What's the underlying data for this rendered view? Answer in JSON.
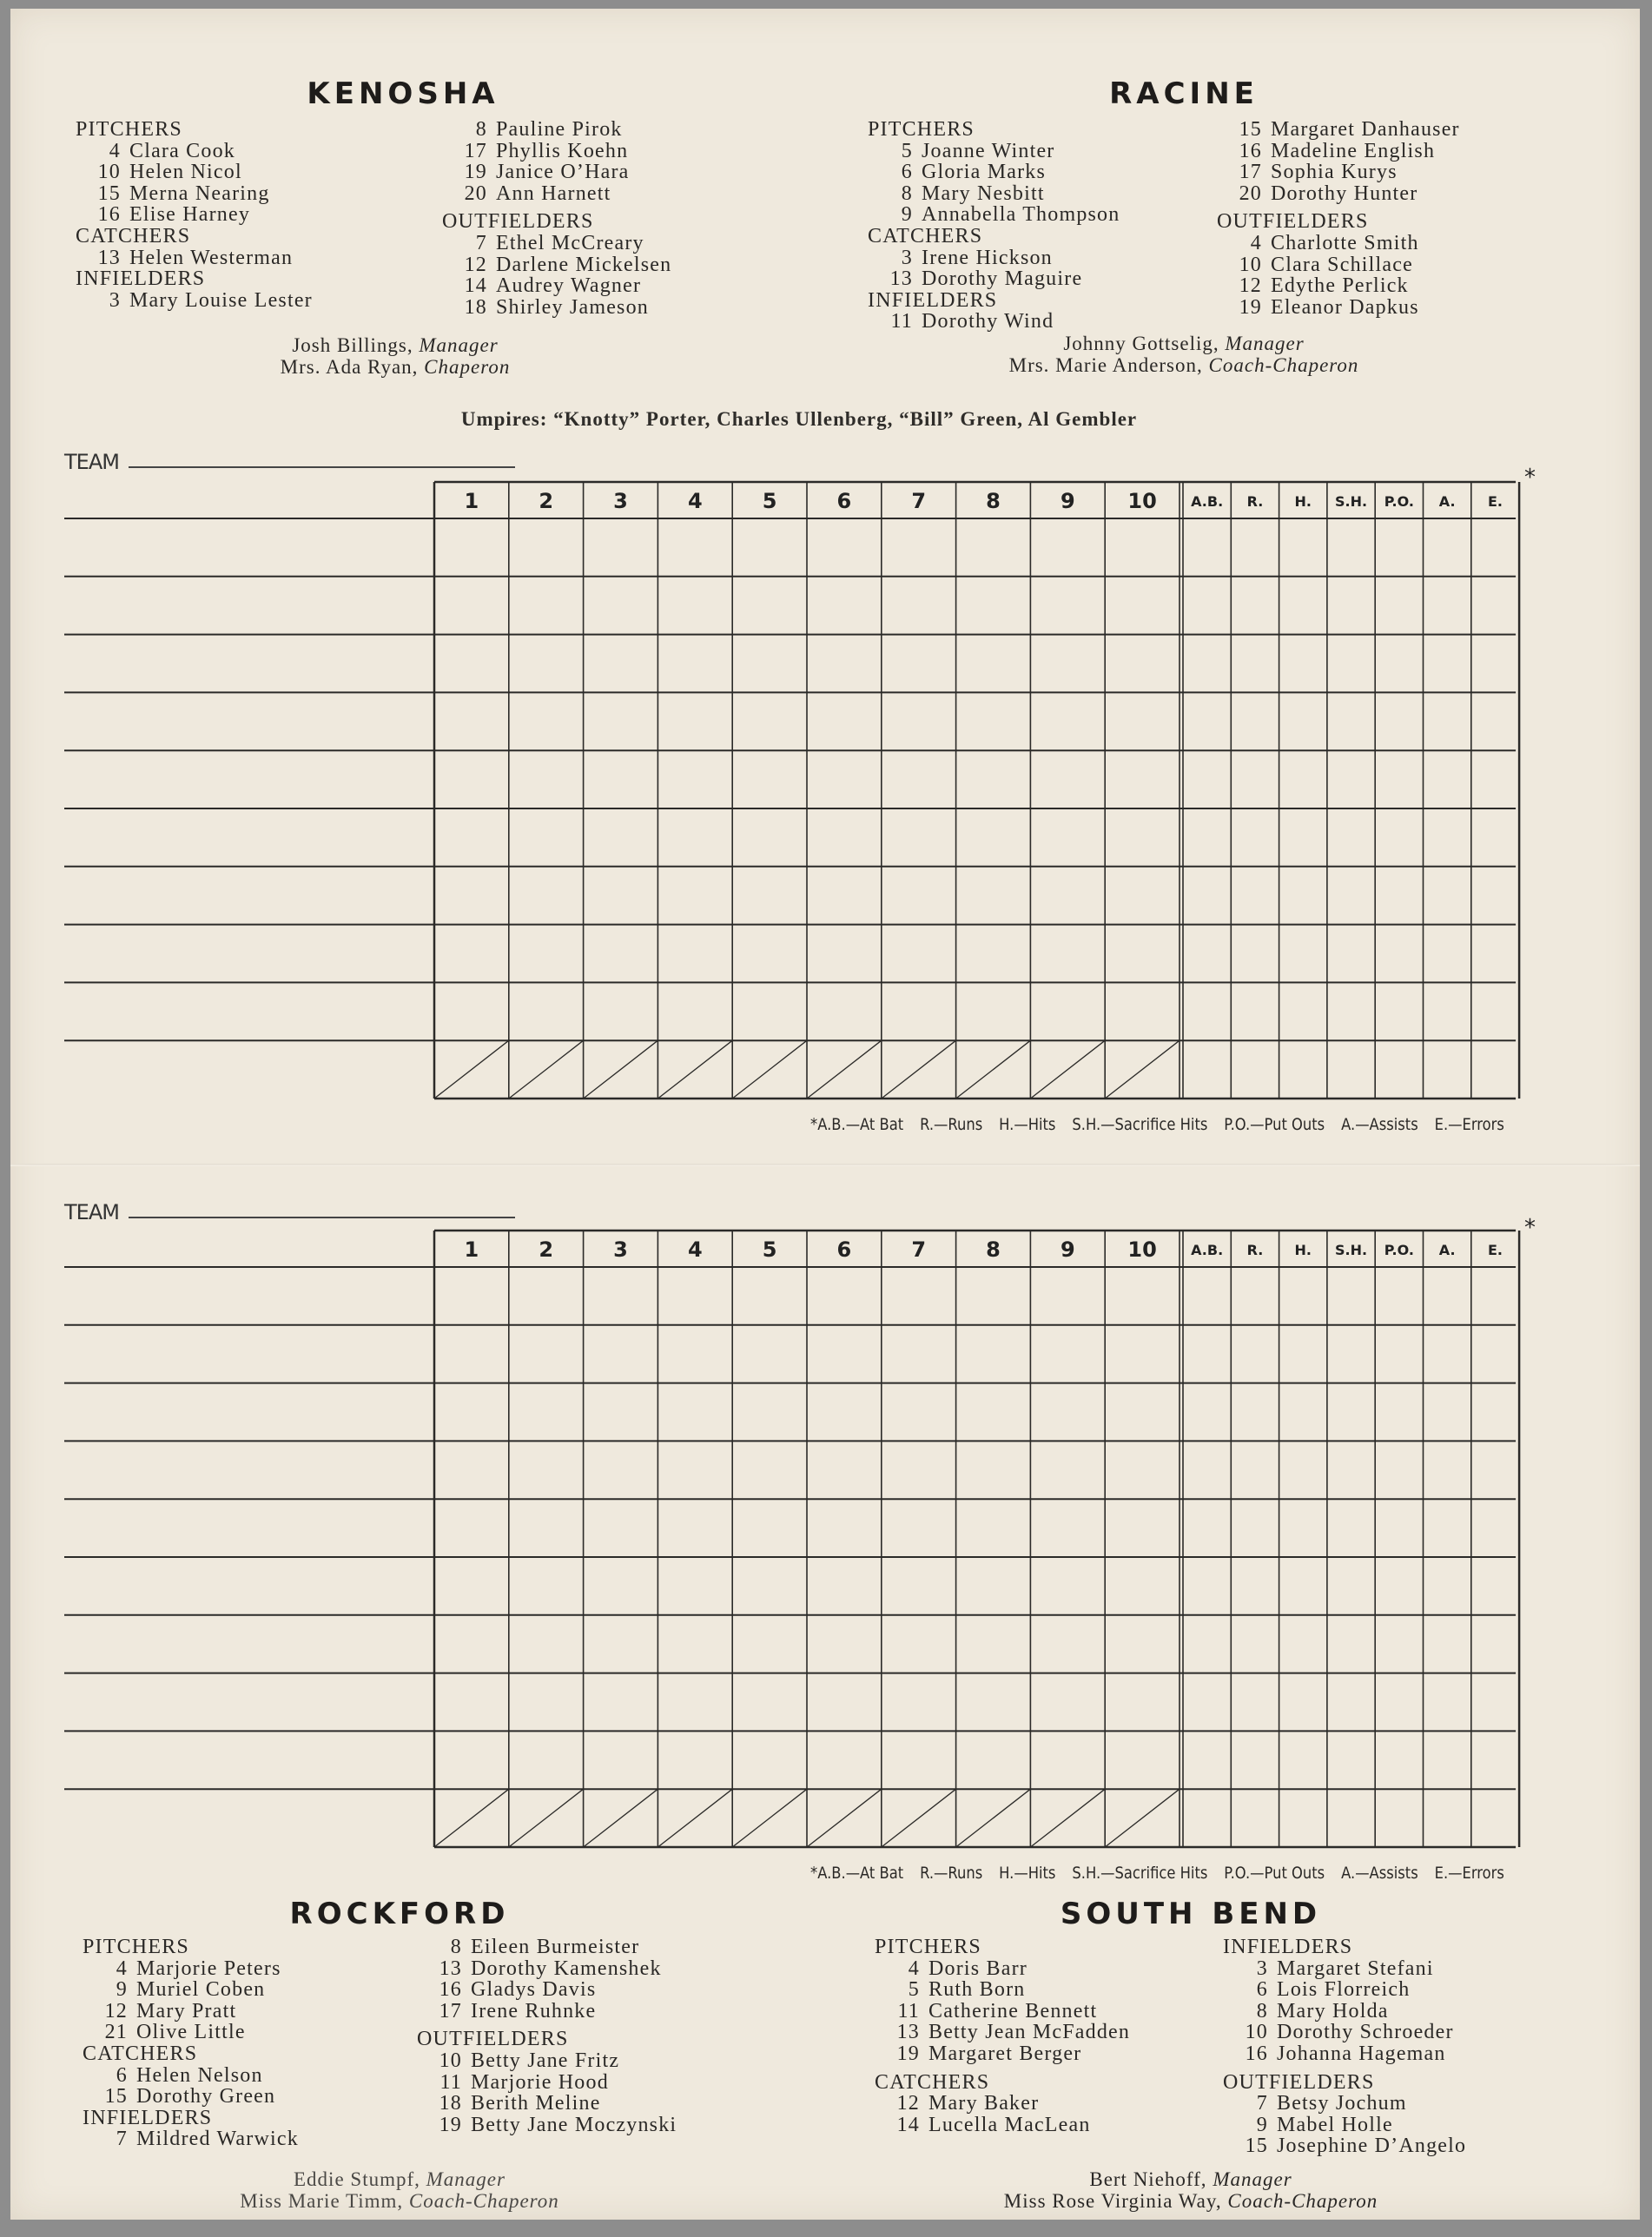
{
  "colors": {
    "paper": "#efe9dd",
    "ink": "#2a2826",
    "frame": "#8d8d8d"
  },
  "teams": {
    "kenosha": {
      "name": "KENOSHA",
      "columns": [
        [
          {
            "heading": "PITCHERS",
            "players": [
              {
                "num": "4",
                "name": "Clara Cook"
              },
              {
                "num": "10",
                "name": "Helen Nicol"
              },
              {
                "num": "15",
                "name": "Merna Nearing"
              },
              {
                "num": "16",
                "name": "Elise Harney"
              }
            ]
          },
          {
            "heading": "CATCHERS",
            "players": [
              {
                "num": "13",
                "name": "Helen Westerman"
              }
            ]
          },
          {
            "heading": "INFIELDERS",
            "players": [
              {
                "num": "3",
                "name": "Mary Louise Lester"
              }
            ]
          }
        ],
        [
          {
            "heading": null,
            "players": [
              {
                "num": "8",
                "name": "Pauline Pirok"
              },
              {
                "num": "17",
                "name": "Phyllis Koehn"
              },
              {
                "num": "19",
                "name": "Janice O’Hara"
              },
              {
                "num": "20",
                "name": "Ann Harnett"
              }
            ]
          },
          {
            "heading": "OUTFIELDERS",
            "gap": true,
            "players": [
              {
                "num": "7",
                "name": "Ethel McCreary"
              },
              {
                "num": "12",
                "name": "Darlene Mickelsen"
              },
              {
                "num": "14",
                "name": "Audrey Wagner"
              },
              {
                "num": "18",
                "name": "Shirley Jameson"
              }
            ]
          }
        ]
      ],
      "manager": {
        "name": "Josh Billings,",
        "role": "Manager"
      },
      "chaperon": {
        "name": "Mrs. Ada Ryan,",
        "role": "Chaperon"
      }
    },
    "racine": {
      "name": "RACINE",
      "columns": [
        [
          {
            "heading": "PITCHERS",
            "players": [
              {
                "num": "5",
                "name": "Joanne Winter"
              },
              {
                "num": "6",
                "name": "Gloria Marks"
              },
              {
                "num": "8",
                "name": "Mary Nesbitt"
              },
              {
                "num": "9",
                "name": "Annabella Thompson"
              }
            ]
          },
          {
            "heading": "CATCHERS",
            "players": [
              {
                "num": "3",
                "name": "Irene Hickson"
              },
              {
                "num": "13",
                "name": "Dorothy Maguire"
              }
            ]
          },
          {
            "heading": "INFIELDERS",
            "players": [
              {
                "num": "11",
                "name": "Dorothy Wind"
              }
            ]
          }
        ],
        [
          {
            "heading": null,
            "players": [
              {
                "num": "15",
                "name": "Margaret Danhauser"
              },
              {
                "num": "16",
                "name": "Madeline English"
              },
              {
                "num": "17",
                "name": "Sophia Kurys"
              },
              {
                "num": "20",
                "name": "Dorothy Hunter"
              }
            ]
          },
          {
            "heading": "OUTFIELDERS",
            "gap": true,
            "players": [
              {
                "num": "4",
                "name": "Charlotte Smith"
              },
              {
                "num": "10",
                "name": "Clara Schillace"
              },
              {
                "num": "12",
                "name": "Edythe Perlick"
              },
              {
                "num": "19",
                "name": "Eleanor Dapkus"
              }
            ]
          }
        ]
      ],
      "manager": {
        "name": "Johnny Gottselig,",
        "role": "Manager"
      },
      "chaperon": {
        "name": "Mrs. Marie Anderson,",
        "role": "Coach-Chaperon"
      }
    },
    "rockford": {
      "name": "ROCKFORD",
      "columns": [
        [
          {
            "heading": "PITCHERS",
            "players": [
              {
                "num": "4",
                "name": "Marjorie Peters"
              },
              {
                "num": "9",
                "name": "Muriel Coben"
              },
              {
                "num": "12",
                "name": "Mary Pratt"
              },
              {
                "num": "21",
                "name": "Olive Little"
              }
            ]
          },
          {
            "heading": "CATCHERS",
            "players": [
              {
                "num": "6",
                "name": "Helen Nelson"
              },
              {
                "num": "15",
                "name": "Dorothy Green"
              }
            ]
          },
          {
            "heading": "INFIELDERS",
            "players": [
              {
                "num": "7",
                "name": "Mildred Warwick"
              }
            ]
          }
        ],
        [
          {
            "heading": null,
            "players": [
              {
                "num": "8",
                "name": "Eileen Burmeister"
              },
              {
                "num": "13",
                "name": "Dorothy Kamenshek"
              },
              {
                "num": "16",
                "name": "Gladys Davis"
              },
              {
                "num": "17",
                "name": "Irene Ruhnke"
              }
            ]
          },
          {
            "heading": "OUTFIELDERS",
            "gap": true,
            "players": [
              {
                "num": "10",
                "name": "Betty Jane Fritz"
              },
              {
                "num": "11",
                "name": "Marjorie Hood"
              },
              {
                "num": "18",
                "name": "Berith Meline"
              },
              {
                "num": "19",
                "name": "Betty Jane Moczynski"
              }
            ]
          }
        ]
      ],
      "manager": {
        "name": "Eddie Stumpf,",
        "role": "Manager"
      },
      "chaperon": {
        "name": "Miss Marie Timm,",
        "role": "Coach-Chaperon"
      }
    },
    "south_bend": {
      "name": "SOUTH BEND",
      "columns": [
        [
          {
            "heading": "PITCHERS",
            "players": [
              {
                "num": "4",
                "name": "Doris Barr"
              },
              {
                "num": "5",
                "name": "Ruth Born"
              },
              {
                "num": "11",
                "name": "Catherine Bennett"
              },
              {
                "num": "13",
                "name": "Betty Jean McFadden"
              },
              {
                "num": "19",
                "name": "Margaret Berger"
              }
            ]
          },
          {
            "heading": "CATCHERS",
            "gap": true,
            "players": [
              {
                "num": "12",
                "name": "Mary Baker"
              },
              {
                "num": "14",
                "name": "Lucella MacLean"
              }
            ]
          }
        ],
        [
          {
            "heading": "INFIELDERS",
            "players": [
              {
                "num": "3",
                "name": "Margaret Stefani"
              },
              {
                "num": "6",
                "name": "Lois Florreich"
              },
              {
                "num": "8",
                "name": "Mary Holda"
              },
              {
                "num": "10",
                "name": "Dorothy Schroeder"
              },
              {
                "num": "16",
                "name": "Johanna Hageman"
              }
            ]
          },
          {
            "heading": "OUTFIELDERS",
            "gap": true,
            "players": [
              {
                "num": "7",
                "name": "Betsy Jochum"
              },
              {
                "num": "9",
                "name": "Mabel Holle"
              },
              {
                "num": "15",
                "name": "Josephine D’Angelo"
              }
            ]
          }
        ]
      ],
      "manager": {
        "name": "Bert Niehoff,",
        "role": "Manager"
      },
      "chaperon": {
        "name": "Miss Rose Virginia Way,",
        "role": "Coach-Chaperon"
      }
    }
  },
  "umpires": "Umpires: “Knotty” Porter, Charles Ullenberg, “Bill” Green, Al Gembler",
  "scorecard": {
    "team_label": "TEAM",
    "team_value": "",
    "innings": [
      "1",
      "2",
      "3",
      "4",
      "5",
      "6",
      "7",
      "8",
      "9",
      "10"
    ],
    "stats": [
      "A.B.",
      "R.",
      "H.",
      "S.H.",
      "P.O.",
      "A.",
      "E."
    ],
    "asterisk": "*",
    "legend": [
      "*A.B.—At Bat",
      "R.—Runs",
      "H.—Hits",
      "S.H.—Sacrifice Hits",
      "P.O.—Put Outs",
      "A.—Assists",
      "E.—Errors"
    ]
  }
}
